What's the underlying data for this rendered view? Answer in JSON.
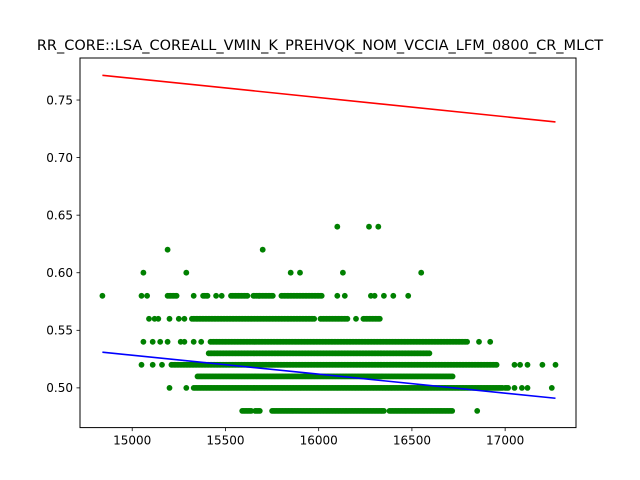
{
  "chart_data": {
    "type": "scatter",
    "title": "RR_CORE::LSA_COREALL_VMIN_K_PREHVQK_NOM_VCCIA_LFM_0800_CR_MLCT",
    "xlabel": "",
    "ylabel": "",
    "xlim": [
      14720,
      17380
    ],
    "ylim": [
      0.4655,
      0.7865
    ],
    "grid": false,
    "x_ticks": [
      15000,
      15500,
      16000,
      16500,
      17000
    ],
    "y_ticks": [
      0.5,
      0.55,
      0.6,
      0.65,
      0.7,
      0.75
    ],
    "colors": {
      "points": "#008000",
      "upper_line": "#ff0000",
      "lower_line": "#0000ff"
    },
    "scatter": [
      {
        "y": 0.48,
        "x_ranges": [
          [
            15590,
            15640
          ],
          [
            15660,
            15690
          ],
          [
            15750,
            16350
          ],
          [
            16380,
            16720
          ]
        ],
        "x_points": [
          16850
        ]
      },
      {
        "y": 0.5,
        "x_ranges": [
          [
            15330,
            16990
          ],
          [
            17000,
            17020
          ]
        ],
        "x_points": [
          15200,
          15290,
          17050,
          17090,
          17120,
          17250
        ]
      },
      {
        "y": 0.51,
        "x_ranges": [
          [
            15350,
            16720
          ]
        ],
        "x_points": []
      },
      {
        "y": 0.52,
        "x_ranges": [
          [
            15210,
            16960
          ]
        ],
        "x_points": [
          15050,
          15110,
          15160,
          17050,
          17080,
          17120,
          17200,
          17270
        ]
      },
      {
        "y": 0.53,
        "x_ranges": [
          [
            15410,
            16600
          ]
        ],
        "x_points": []
      },
      {
        "y": 0.54,
        "x_ranges": [
          [
            15420,
            16800
          ]
        ],
        "x_points": [
          15060,
          15110,
          15150,
          15190,
          15260,
          15280,
          15330,
          15370,
          16860,
          16920
        ]
      },
      {
        "y": 0.56,
        "x_ranges": [
          [
            15320,
            15980
          ],
          [
            16010,
            16160
          ],
          [
            16240,
            16330
          ]
        ],
        "x_points": [
          15090,
          15120,
          15140,
          15200,
          15250,
          15280,
          16200
        ]
      },
      {
        "y": 0.58,
        "x_ranges": [
          [
            15190,
            15240
          ],
          [
            15380,
            15410
          ],
          [
            15530,
            15620
          ],
          [
            15650,
            15760
          ],
          [
            15800,
            16020
          ]
        ],
        "x_points": [
          14840,
          15050,
          15080,
          15330,
          15450,
          15480,
          15680,
          16100,
          16140,
          16280,
          16300,
          16350,
          16400,
          16480
        ]
      },
      {
        "y": 0.6,
        "x_ranges": [],
        "x_points": [
          15060,
          15290,
          15850,
          15900,
          16130,
          16550
        ]
      },
      {
        "y": 0.62,
        "x_ranges": [],
        "x_points": [
          15190,
          15700
        ]
      },
      {
        "y": 0.64,
        "x_ranges": [],
        "x_points": [
          16100,
          16270,
          16320
        ]
      }
    ],
    "lines": [
      {
        "x": [
          14840,
          17270
        ],
        "y": [
          0.7715,
          0.731
        ],
        "color": "#ff0000"
      },
      {
        "x": [
          14840,
          17270
        ],
        "y": [
          0.531,
          0.491
        ],
        "color": "#0000ff"
      }
    ]
  }
}
